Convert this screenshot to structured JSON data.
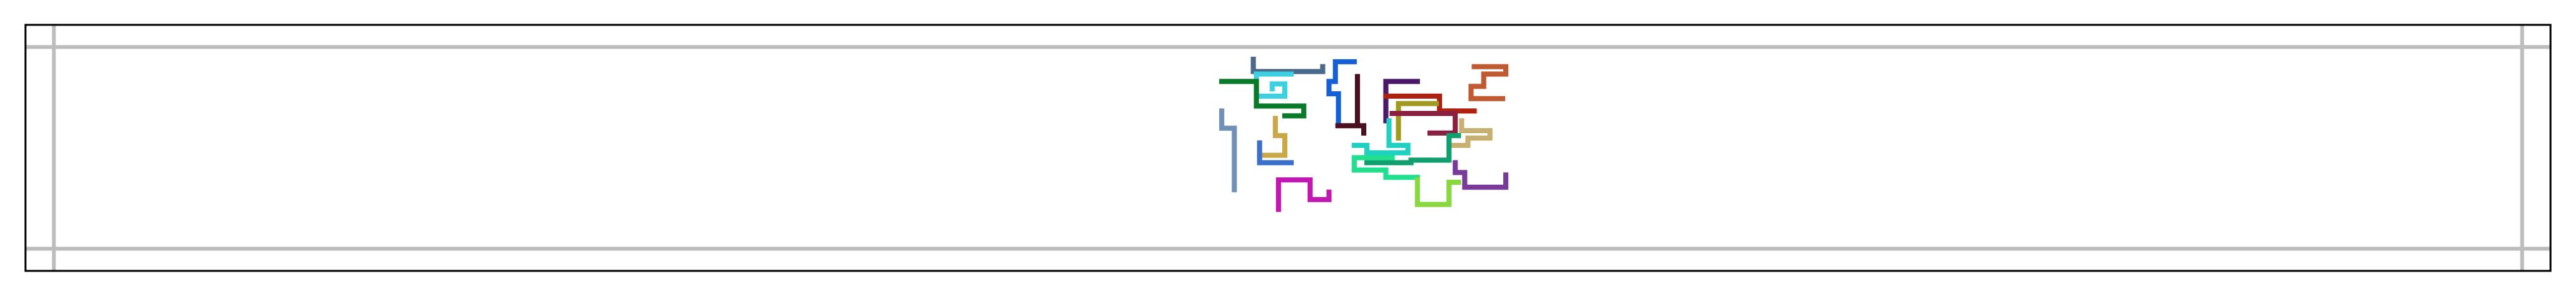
{
  "chart_data": {
    "type": "line",
    "title": "",
    "xlabel": "",
    "ylabel": "",
    "xlim": [
      -1.5,
      78.5
    ],
    "ylim": [
      -1.5,
      8.5
    ],
    "grid": true,
    "grid_x": [
      -0.6,
      77.6
    ],
    "grid_y": [
      -0.6,
      7.6
    ],
    "legend": "none",
    "series": [
      {
        "color": "#4a6a8c",
        "points": [
          [
            37.4,
            7.1
          ],
          [
            37.4,
            6.6
          ],
          [
            39.6,
            6.6
          ],
          [
            39.6,
            6.8
          ]
        ]
      },
      {
        "color": "#1560d6",
        "points": [
          [
            40.6,
            7.0
          ],
          [
            40.0,
            7.0
          ],
          [
            40.0,
            6.2
          ],
          [
            39.8,
            6.2
          ],
          [
            39.8,
            5.7
          ],
          [
            40.1,
            5.7
          ],
          [
            40.1,
            4.5
          ]
        ]
      },
      {
        "color": "#c05a30",
        "points": [
          [
            44.4,
            6.8
          ],
          [
            45.4,
            6.8
          ],
          [
            45.4,
            6.5
          ],
          [
            44.7,
            6.5
          ],
          [
            44.7,
            6.0
          ],
          [
            44.3,
            6.0
          ],
          [
            44.3,
            5.5
          ],
          [
            45.3,
            5.5
          ]
        ]
      },
      {
        "color": "#3ed0e0",
        "points": [
          [
            38.6,
            6.5
          ],
          [
            37.5,
            6.5
          ],
          [
            37.5,
            5.6
          ],
          [
            38.4,
            5.6
          ],
          [
            38.4,
            6.1
          ],
          [
            38.0,
            6.1
          ],
          [
            38.0,
            5.9
          ]
        ]
      },
      {
        "color": "#0a7a2a",
        "points": [
          [
            36.4,
            6.2
          ],
          [
            37.5,
            6.2
          ],
          [
            37.5,
            5.2
          ],
          [
            39.0,
            5.2
          ],
          [
            39.0,
            4.8
          ],
          [
            38.4,
            4.8
          ]
        ]
      },
      {
        "color": "#4a1020",
        "points": [
          [
            40.7,
            6.4
          ],
          [
            40.7,
            4.4
          ],
          [
            40.9,
            4.4
          ],
          [
            40.0,
            4.4
          ],
          [
            40.9,
            4.4
          ],
          [
            40.9,
            4.1
          ]
        ]
      },
      {
        "color": "#4a1a6a",
        "points": [
          [
            42.6,
            6.2
          ],
          [
            41.6,
            6.2
          ],
          [
            41.6,
            4.6
          ]
        ]
      },
      {
        "color": "#b02010",
        "points": [
          [
            41.6,
            5.6
          ],
          [
            43.3,
            5.6
          ],
          [
            43.3,
            5.0
          ],
          [
            44.4,
            5.0
          ]
        ]
      },
      {
        "color": "#a09a20",
        "points": [
          [
            43.2,
            5.3
          ],
          [
            42.0,
            5.3
          ],
          [
            42.0,
            3.9
          ]
        ]
      },
      {
        "color": "#8a2040",
        "points": [
          [
            41.8,
            4.9
          ],
          [
            43.8,
            4.9
          ],
          [
            43.8,
            4.1
          ],
          [
            43.0,
            4.1
          ]
        ]
      },
      {
        "color": "#20d0c0",
        "points": [
          [
            41.7,
            4.6
          ],
          [
            41.7,
            3.6
          ],
          [
            42.3,
            3.6
          ],
          [
            42.3,
            3.3
          ],
          [
            41.0,
            3.3
          ],
          [
            41.0,
            3.6
          ],
          [
            40.6,
            3.6
          ]
        ]
      },
      {
        "color": "#c8b070",
        "points": [
          [
            44.0,
            4.6
          ],
          [
            44.0,
            4.2
          ],
          [
            44.9,
            4.2
          ],
          [
            44.9,
            3.9
          ],
          [
            44.2,
            3.9
          ],
          [
            44.2,
            3.6
          ],
          [
            43.7,
            3.6
          ]
        ]
      },
      {
        "color": "#c8a848",
        "points": [
          [
            38.1,
            4.7
          ],
          [
            38.1,
            4.0
          ],
          [
            38.4,
            4.0
          ],
          [
            38.4,
            3.2
          ],
          [
            37.7,
            3.2
          ]
        ]
      },
      {
        "color": "#7090b8",
        "points": [
          [
            36.4,
            5.0
          ],
          [
            36.4,
            4.3
          ],
          [
            36.8,
            4.3
          ],
          [
            36.8,
            1.8
          ]
        ]
      },
      {
        "color": "#10a070",
        "points": [
          [
            43.9,
            4.0
          ],
          [
            43.6,
            4.0
          ],
          [
            43.6,
            3.0
          ],
          [
            42.4,
            3.0
          ],
          [
            42.4,
            2.9
          ],
          [
            41.0,
            2.9
          ]
        ]
      },
      {
        "color": "#3a70cc",
        "points": [
          [
            37.6,
            3.7
          ],
          [
            37.6,
            2.9
          ],
          [
            38.6,
            2.9
          ]
        ]
      },
      {
        "color": "#20e090",
        "points": [
          [
            41.8,
            3.1
          ],
          [
            40.6,
            3.1
          ],
          [
            40.6,
            2.6
          ],
          [
            41.6,
            2.6
          ],
          [
            41.6,
            2.3
          ],
          [
            42.6,
            2.3
          ]
        ]
      },
      {
        "color": "#7a3a9a",
        "points": [
          [
            43.8,
            2.9
          ],
          [
            43.8,
            2.5
          ],
          [
            44.1,
            2.5
          ],
          [
            44.1,
            1.9
          ],
          [
            45.4,
            1.9
          ],
          [
            45.4,
            2.4
          ]
        ]
      },
      {
        "color": "#c018b0",
        "points": [
          [
            38.2,
            1.0
          ],
          [
            38.2,
            2.2
          ],
          [
            39.2,
            2.2
          ],
          [
            39.2,
            1.4
          ],
          [
            39.8,
            1.4
          ],
          [
            39.8,
            1.7
          ]
        ]
      },
      {
        "color": "#88d840",
        "points": [
          [
            43.9,
            2.1
          ],
          [
            43.6,
            2.1
          ],
          [
            43.6,
            1.2
          ],
          [
            42.6,
            1.2
          ],
          [
            42.6,
            2.2
          ]
        ]
      }
    ]
  }
}
